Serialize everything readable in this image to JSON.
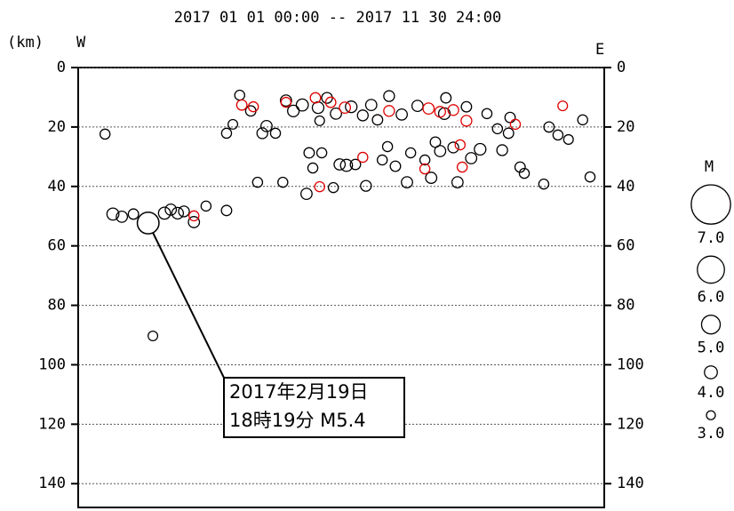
{
  "chart_data": {
    "type": "scatter",
    "title": "2017 01 01 00:00 -- 2017 11 30 24:00",
    "y_label": "(km)",
    "west_label": "W",
    "east_label": "E",
    "xlim": [
      0,
      100
    ],
    "ylim": [
      0,
      148
    ],
    "yticks": [
      0,
      20,
      40,
      60,
      80,
      100,
      120,
      140
    ],
    "grid": true,
    "series": [
      {
        "color": "#000000",
        "x": [
          5.1,
          6.6,
          8.3,
          10.5,
          14.2,
          16.4,
          17.6,
          18.9,
          20.1,
          22.0,
          24.3,
          28.2,
          28.2,
          29.4,
          30.7,
          32.8,
          34.1,
          35.0,
          35.8,
          37.5,
          38.9,
          39.5,
          40.9,
          42.6,
          43.4,
          43.9,
          44.6,
          45.6,
          46.3,
          47.3,
          48.5,
          49.0,
          49.7,
          51.0,
          51.9,
          52.7,
          54.1,
          54.7,
          55.7,
          56.9,
          57.8,
          59.1,
          60.3,
          61.5,
          62.5,
          63.2,
          64.5,
          65.9,
          67.1,
          67.9,
          68.8,
          69.6,
          69.9,
          71.3,
          72.1,
          73.8,
          74.7,
          76.4,
          77.7,
          79.7,
          80.6,
          81.8,
          84.0,
          84.8,
          88.5,
          89.5,
          91.2,
          93.2,
          95.9,
          97.3,
          82.1,
          58.8,
          45.9
        ],
        "values": [
          22.4,
          49.3,
          50.2,
          49.3,
          90.3,
          49.0,
          47.8,
          49.0,
          48.4,
          52.0,
          46.6,
          48.1,
          22.1,
          19.1,
          9.3,
          14.6,
          38.6,
          22.1,
          19.7,
          22.1,
          38.6,
          11.1,
          14.6,
          12.6,
          42.5,
          28.7,
          33.8,
          13.5,
          28.7,
          10.2,
          40.4,
          15.5,
          32.6,
          32.9,
          13.2,
          32.6,
          16.1,
          39.8,
          12.6,
          17.6,
          31.1,
          9.6,
          33.2,
          15.8,
          38.6,
          28.7,
          12.9,
          31.1,
          37.1,
          25.1,
          28.1,
          15.5,
          10.2,
          26.9,
          38.6,
          13.2,
          30.5,
          27.5,
          15.5,
          20.6,
          27.8,
          22.1,
          33.5,
          35.6,
          39.2,
          20.0,
          22.7,
          24.2,
          17.6,
          36.8,
          16.8,
          26.6,
          17.9
        ],
        "sizes": [
          3.3,
          3.8,
          3.6,
          3.4,
          3.2,
          3.8,
          3.6,
          3.7,
          3.5,
          3.6,
          3.3,
          3.4,
          3.3,
          3.2,
          3.3,
          3.4,
          3.3,
          3.5,
          3.6,
          3.3,
          3.3,
          3.6,
          3.7,
          3.8,
          3.6,
          3.4,
          3.3,
          3.7,
          3.3,
          3.5,
          3.3,
          3.6,
          3.6,
          3.8,
          3.7,
          3.4,
          3.5,
          3.5,
          3.6,
          3.4,
          3.3,
          3.5,
          3.4,
          3.6,
          3.6,
          3.3,
          3.6,
          3.3,
          3.6,
          3.4,
          3.6,
          3.7,
          3.4,
          3.5,
          3.6,
          3.4,
          3.6,
          3.7,
          3.3,
          3.3,
          3.5,
          3.4,
          3.4,
          3.3,
          3.3,
          3.4,
          3.3,
          3.2,
          3.3,
          3.3,
          3.4,
          3.3,
          3.2
        ]
      },
      {
        "color": "#e00000",
        "x": [
          31.1,
          33.3,
          39.5,
          45.1,
          45.9,
          48.0,
          50.7,
          54.1,
          59.1,
          65.9,
          66.6,
          68.8,
          71.3,
          72.6,
          73.0,
          73.8,
          83.1,
          92.1,
          22.0
        ],
        "values": [
          12.6,
          13.2,
          11.7,
          10.2,
          40.1,
          11.7,
          13.5,
          30.2,
          14.6,
          34.1,
          13.8,
          14.9,
          14.3,
          26.0,
          33.5,
          17.9,
          19.1,
          12.9,
          49.9
        ],
        "sizes": [
          3.4,
          3.3,
          3.3,
          3.4,
          3.3,
          3.4,
          3.6,
          3.3,
          3.5,
          3.3,
          3.6,
          3.5,
          3.5,
          3.3,
          3.3,
          3.5,
          3.3,
          3.2,
          3.3
        ]
      }
    ],
    "annotation": {
      "lines": [
        "2017年2月19日",
        "18時19分 M5.4"
      ],
      "x": 13.3,
      "y": 52.3,
      "size": 5.4
    },
    "size_legend": {
      "title": "M",
      "items": [
        {
          "value": 7,
          "label": "7.0"
        },
        {
          "value": 6,
          "label": "6.0"
        },
        {
          "value": 5,
          "label": "5.0"
        },
        {
          "value": 4,
          "label": "4.0"
        },
        {
          "value": 3,
          "label": "3.0"
        }
      ]
    }
  }
}
